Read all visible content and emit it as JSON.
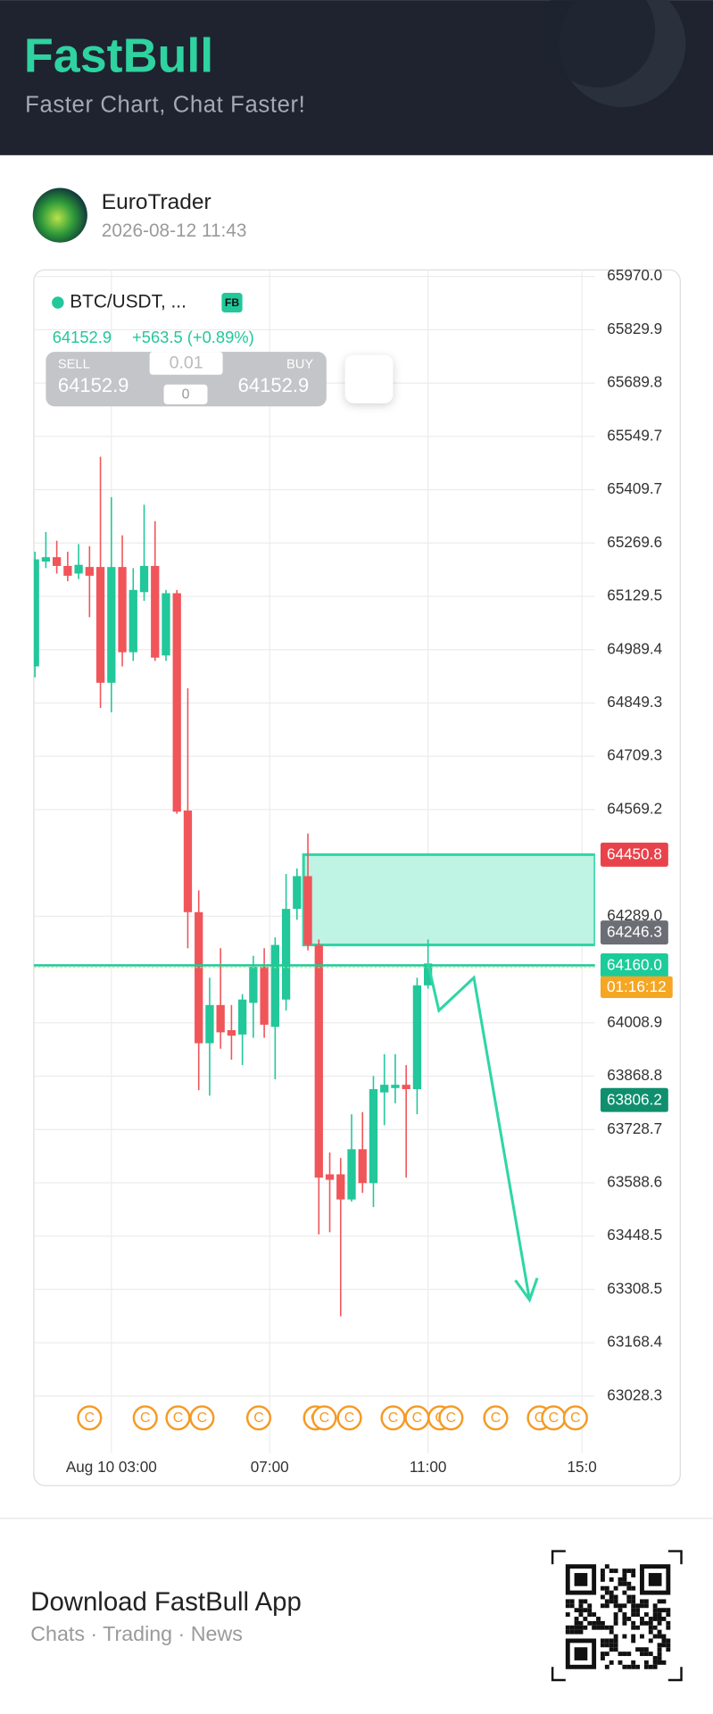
{
  "header": {
    "brand": "FastBull",
    "tagline": "Faster Chart, Chat Faster!"
  },
  "post": {
    "author": "EuroTrader",
    "time": "2026-08-12 11:43"
  },
  "chart_data": {
    "type": "candlestick",
    "symbol": "BTC/USDT, ...",
    "badge": "FB",
    "quote": {
      "price": "64152.9",
      "change": "+563.5 (+0.89%)"
    },
    "trade_panel": {
      "sell_label": "SELL",
      "sell": "64152.9",
      "buy_label": "BUY",
      "buy": "64152.9",
      "lot": "0.01",
      "qty": "0"
    },
    "up_color": "#22c79a",
    "down_color": "#f0555a",
    "x": [
      0,
      1,
      2,
      3,
      4,
      5,
      6,
      7,
      8,
      9,
      10,
      11,
      12,
      13,
      14,
      15,
      16,
      17,
      18,
      19,
      20,
      21,
      22,
      23,
      24,
      25,
      26,
      27,
      28,
      29,
      30,
      31,
      32,
      33,
      34,
      35,
      36
    ],
    "open": [
      64945.4,
      65220.9,
      65232.4,
      65209.4,
      65189.4,
      65206.6,
      65206.6,
      64902.4,
      65206.6,
      64982.7,
      65140.6,
      65209.4,
      64974.1,
      65137.7,
      64566.6,
      64299.7,
      63955.3,
      64055.7,
      63989.7,
      63978.2,
      64061.4,
      64156.2,
      63998.3,
      64070.1,
      64308.3,
      64394.4,
      64213.6,
      63610.9,
      63610.9,
      63544.8,
      63676.9,
      63587.9,
      63826.1,
      63837.6,
      63846.2,
      63834.7,
      64107.4
    ],
    "high": [
      65246.8,
      65298.4,
      65275.5,
      65246.8,
      65266.8,
      65261.1,
      65496.4,
      65390.3,
      65289.8,
      65203.7,
      65370.2,
      65327.1,
      65146.3,
      65146.3,
      64888.0,
      64357.1,
      64127.5,
      64204.9,
      64055.7,
      64084.4,
      64184.9,
      64204.9,
      64233.6,
      64400.1,
      64414.5,
      64506.3,
      64227.9,
      63668.3,
      63653.9,
      63768.7,
      63774.4,
      63869.2,
      63926.6,
      63926.6,
      63897.9,
      64127.5,
      64227.9
    ],
    "low": [
      64916.7,
      65203.7,
      65189.4,
      65169.3,
      65175.0,
      65074.6,
      64836.3,
      64824.9,
      64945.4,
      64959.8,
      65117.6,
      64959.8,
      64959.8,
      64558.0,
      64204.9,
      63831.8,
      63817.5,
      63940.9,
      63912.2,
      63897.9,
      63969.6,
      63969.6,
      63860.5,
      64041.4,
      64279.6,
      64199.2,
      63453.0,
      63458.7,
      63237.8,
      63539.1,
      63562.1,
      63524.8,
      63740.0,
      63797.4,
      63602.2,
      63768.7,
      64098.8
    ],
    "close": [
      65226.7,
      65232.4,
      65209.4,
      65183.6,
      65212.3,
      65183.6,
      64902.4,
      65206.6,
      64982.7,
      65146.3,
      65209.4,
      64968.4,
      65137.7,
      64563.7,
      64299.7,
      63955.3,
      64055.7,
      63984.0,
      63975.3,
      64070.1,
      64156.2,
      64004.0,
      64213.6,
      64308.3,
      64394.4,
      64213.6,
      63602.2,
      63596.5,
      63544.8,
      63676.9,
      63587.9,
      63834.7,
      63846.2,
      63846.2,
      63834.7,
      64107.4,
      64164.8
    ],
    "xlim": [
      -0.1,
      51.3
    ],
    "xticks": [
      {
        "value": 7,
        "label": "Aug 10 03:00"
      },
      {
        "value": 21.5,
        "label": "07:00"
      },
      {
        "value": 36,
        "label": "11:00"
      },
      {
        "value": 50.1,
        "label": "15:0"
      }
    ],
    "ylim": [
      62907.8,
      65987.2
    ],
    "yticks": [
      {
        "value": 65970,
        "label": "65970.0"
      },
      65829.9,
      65689.8,
      65549.7,
      65409.7,
      65269.6,
      65129.5,
      64989.4,
      64849.3,
      64709.3,
      64569.2,
      {
        "value": 64289,
        "label": "64289.0"
      },
      64008.9,
      63868.8,
      63728.7,
      63588.6,
      63448.5,
      63308.5,
      63168.4,
      63028.3
    ],
    "grid": true,
    "zone": {
      "top": 64450.8,
      "bottom": 64213.6,
      "x_start": 24.6,
      "color": "#bff3e3",
      "stroke": "#2fd6a5"
    },
    "price_tags": [
      {
        "value": 64450.8,
        "color": "#e8434b"
      },
      {
        "value": 64246.3,
        "color": "#6b6e75"
      },
      {
        "value": 64160,
        "label": "64160.0",
        "color": "#1ccb9a",
        "countdown": "01:16:12",
        "countdown_color": "#f5a623",
        "line": true
      },
      {
        "value": 63806.2,
        "color": "#0f8f6e"
      }
    ],
    "events": [
      {
        "x": 5,
        "label": "C"
      },
      {
        "x": 10.1,
        "label": "C"
      },
      {
        "x": 13.1,
        "label": "C"
      },
      {
        "x": 15.3,
        "label": "C"
      },
      {
        "x": 20.5,
        "label": "C"
      },
      {
        "x": 25.7,
        "label": "C"
      },
      {
        "x": 26.5,
        "label": "C"
      },
      {
        "x": 28.8,
        "label": "C"
      },
      {
        "x": 32.8,
        "label": "C"
      },
      {
        "x": 35,
        "label": "C"
      },
      {
        "x": 37.1,
        "label": "C"
      },
      {
        "x": 38.1,
        "label": "C"
      },
      {
        "x": 42.2,
        "label": "C"
      },
      {
        "x": 46.2,
        "label": "C"
      },
      {
        "x": 47.5,
        "label": "C"
      },
      {
        "x": 49.5,
        "label": "C"
      }
    ],
    "event_color": "#f59a23"
  },
  "footer": {
    "title": "Download FastBull App",
    "subtitle": "Chats · Trading · News"
  }
}
